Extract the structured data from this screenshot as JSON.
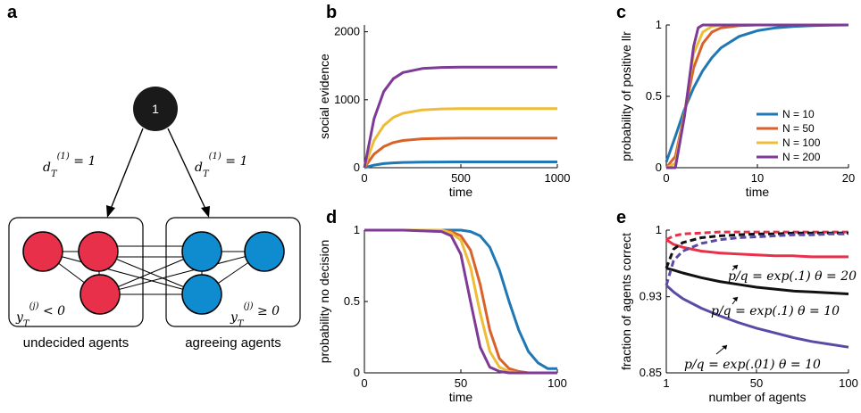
{
  "colors": {
    "blue": "#1f77b4",
    "orange": "#d8622a",
    "yellow": "#eebc37",
    "purple": "#7e3a96",
    "red": "#e8304a",
    "black": "#111111",
    "indigo": "#5a4aa6",
    "node_red": "#e8304a",
    "node_blue": "#0e8ccf"
  },
  "panel_a": {
    "letter": "a",
    "top_node": "1",
    "edge_left": "d_T^{(1)} = 1",
    "edge_right": "d_T^{(1)} = 1",
    "left_condition": "y_T^{(j)} < 0",
    "right_condition": "y_T^{(j)} ≥ 0",
    "left_group": "undecided agents",
    "right_group": "agreeing agents"
  },
  "legend": [
    "N = 10",
    "N = 50",
    "N = 100",
    "N = 200"
  ],
  "chart_data": [
    {
      "panel": "b",
      "type": "line",
      "xlabel": "time",
      "ylabel": "social evidence",
      "xlim": [
        0,
        1000
      ],
      "ylim": [
        0,
        2100
      ],
      "xticks": [
        "0",
        "500",
        "1000"
      ],
      "yticks": [
        "0",
        "1000",
        "2000"
      ],
      "x": [
        0,
        50,
        100,
        150,
        200,
        300,
        400,
        500,
        600,
        800,
        1000
      ],
      "series": [
        {
          "name": "N = 10",
          "values": [
            0,
            38,
            60,
            71,
            77,
            82,
            84,
            85,
            85,
            85,
            85
          ]
        },
        {
          "name": "N = 50",
          "values": [
            0,
            200,
            310,
            370,
            400,
            425,
            432,
            435,
            435,
            435,
            435
          ]
        },
        {
          "name": "N = 100",
          "values": [
            0,
            400,
            620,
            740,
            800,
            850,
            865,
            870,
            870,
            870,
            870
          ]
        },
        {
          "name": "N = 200",
          "values": [
            0,
            720,
            1120,
            1310,
            1400,
            1460,
            1475,
            1480,
            1480,
            1480,
            1480
          ]
        }
      ]
    },
    {
      "panel": "c",
      "type": "line",
      "xlabel": "time",
      "ylabel": "probability of positive llr",
      "xlim": [
        0,
        20
      ],
      "ylim": [
        0,
        1
      ],
      "xticks": [
        "0",
        "10",
        "20"
      ],
      "yticks": [
        "0",
        "0.5",
        "1"
      ],
      "series": [
        {
          "name": "N = 10",
          "x": [
            0,
            1,
            2,
            3,
            4,
            5,
            6,
            8,
            10,
            12,
            14,
            16,
            18,
            20
          ],
          "values": [
            0.04,
            0.22,
            0.41,
            0.56,
            0.68,
            0.77,
            0.84,
            0.92,
            0.96,
            0.98,
            0.99,
            0.995,
            0.998,
            1.0
          ]
        },
        {
          "name": "N = 50",
          "x": [
            0,
            1,
            2,
            3,
            4,
            5,
            6,
            8,
            10,
            14,
            20
          ],
          "values": [
            0.0,
            0.08,
            0.38,
            0.7,
            0.87,
            0.95,
            0.98,
            0.995,
            1.0,
            1.0,
            1.0
          ]
        },
        {
          "name": "N = 100",
          "x": [
            0,
            1,
            2,
            3,
            4,
            5,
            6,
            8,
            20
          ],
          "values": [
            0.0,
            0.03,
            0.38,
            0.8,
            0.95,
            0.99,
            1.0,
            1.0,
            1.0
          ]
        },
        {
          "name": "N = 200",
          "x": [
            0,
            1,
            2,
            3,
            3.5,
            4,
            5,
            20
          ],
          "values": [
            0.0,
            0.0,
            0.36,
            0.85,
            0.98,
            1.0,
            1.0,
            1.0
          ]
        }
      ]
    },
    {
      "panel": "d",
      "type": "line",
      "xlabel": "time",
      "ylabel": "probability no decision",
      "xlim": [
        0,
        100
      ],
      "ylim": [
        0,
        1
      ],
      "xticks": [
        "0",
        "50",
        "100"
      ],
      "yticks": [
        "0",
        "0.5",
        "1"
      ],
      "x": [
        0,
        20,
        40,
        45,
        50,
        55,
        60,
        65,
        70,
        75,
        80,
        85,
        90,
        95,
        100
      ],
      "series": [
        {
          "name": "N = 10",
          "values": [
            1,
            1,
            1,
            1,
            1,
            0.99,
            0.96,
            0.88,
            0.72,
            0.5,
            0.3,
            0.15,
            0.07,
            0.03,
            0.03
          ]
        },
        {
          "name": "N = 50",
          "values": [
            1,
            1,
            1,
            0.99,
            0.96,
            0.86,
            0.62,
            0.3,
            0.1,
            0.03,
            0.01,
            0,
            0,
            0,
            0
          ]
        },
        {
          "name": "N = 100",
          "values": [
            1,
            1,
            1,
            0.98,
            0.93,
            0.74,
            0.42,
            0.15,
            0.04,
            0.01,
            0,
            0,
            0,
            0,
            0
          ]
        },
        {
          "name": "N = 200",
          "values": [
            1,
            1,
            0.99,
            0.96,
            0.83,
            0.5,
            0.18,
            0.04,
            0.01,
            0,
            0,
            0,
            0,
            0,
            0
          ]
        }
      ]
    },
    {
      "panel": "e",
      "type": "line",
      "xlabel": "number of agents",
      "ylabel": "fraction of agents correct",
      "xlim": [
        1,
        100
      ],
      "ylim": [
        0.85,
        1
      ],
      "xticks": [
        "1",
        "50",
        "100"
      ],
      "yticks": [
        "0.85",
        "0.93",
        "1"
      ],
      "annotations": [
        "p/q = exp(.1)   θ = 20",
        "p/q = exp(.1)   θ = 10",
        "p/q = exp(.01)   θ = 10"
      ],
      "x": [
        1,
        5,
        10,
        20,
        30,
        40,
        50,
        60,
        70,
        80,
        90,
        100
      ],
      "series": [
        {
          "line": "red solid",
          "values": [
            0.99,
            0.985,
            0.982,
            0.978,
            0.976,
            0.975,
            0.974,
            0.973,
            0.973,
            0.972,
            0.972,
            0.972
          ]
        },
        {
          "line": "black solid",
          "values": [
            0.96,
            0.958,
            0.955,
            0.95,
            0.946,
            0.943,
            0.94,
            0.938,
            0.936,
            0.935,
            0.934,
            0.933
          ]
        },
        {
          "line": "indigo solid",
          "values": [
            0.942,
            0.935,
            0.928,
            0.918,
            0.91,
            0.903,
            0.897,
            0.892,
            0.887,
            0.883,
            0.88,
            0.877
          ]
        },
        {
          "line": "red dashed",
          "values": [
            0.99,
            0.994,
            0.996,
            0.997,
            0.998,
            0.998,
            0.998,
            0.998,
            0.998,
            0.998,
            0.998,
            0.998
          ]
        },
        {
          "line": "black dashed",
          "values": [
            0.96,
            0.98,
            0.987,
            0.992,
            0.994,
            0.995,
            0.996,
            0.996,
            0.997,
            0.997,
            0.997,
            0.997
          ]
        },
        {
          "line": "indigo dashed",
          "values": [
            0.942,
            0.968,
            0.978,
            0.986,
            0.99,
            0.992,
            0.993,
            0.994,
            0.995,
            0.995,
            0.996,
            0.996
          ]
        }
      ]
    }
  ]
}
